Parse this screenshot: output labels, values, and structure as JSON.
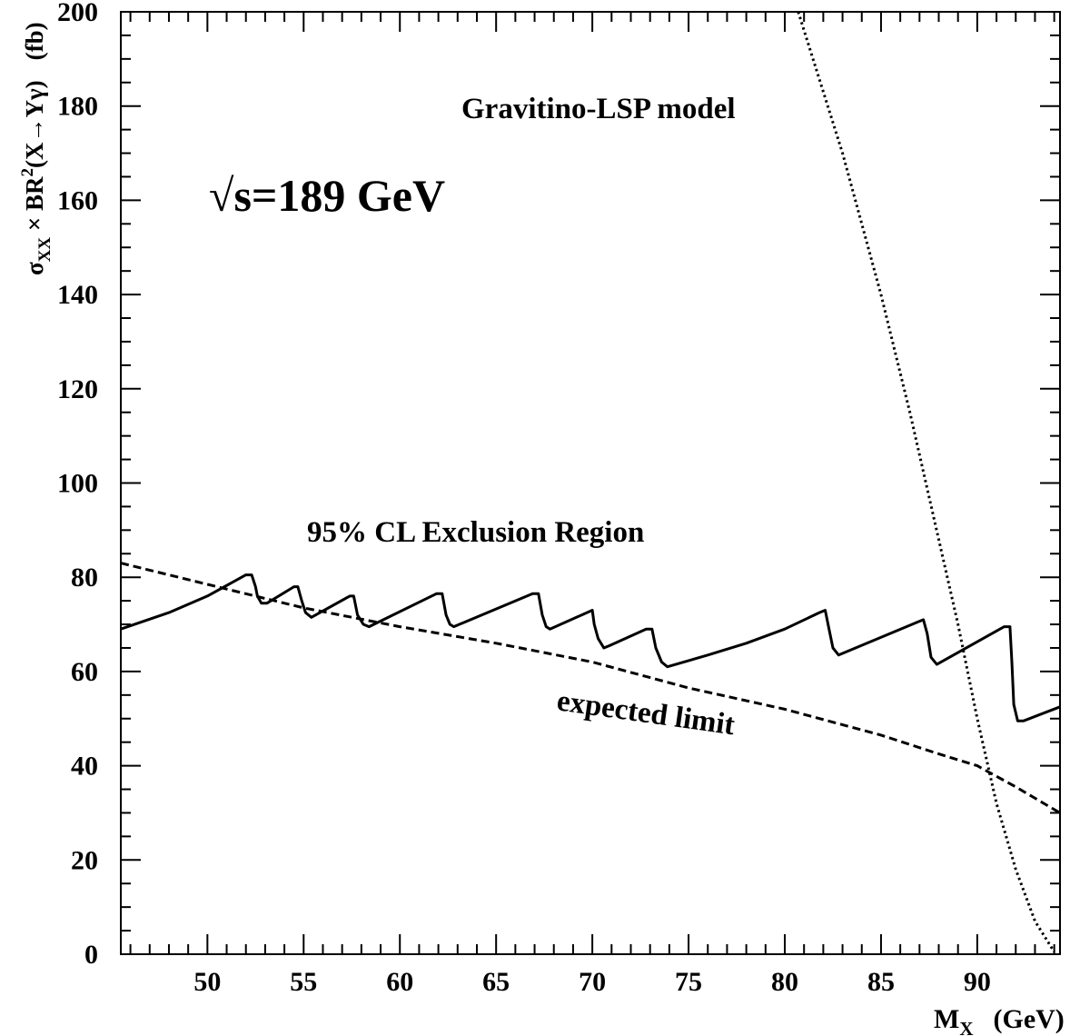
{
  "chart_data": {
    "type": "line",
    "title": "",
    "xlabel": {
      "main": "M",
      "sub": "X",
      "unit": "(GeV)"
    },
    "ylabel": {
      "sigma": "σ",
      "sigma_sub": "XX",
      "times": " × BR",
      "sup": "2",
      "process": "(X→Yγ)",
      "unit": "(fb)"
    },
    "xlim": [
      45.5,
      94.3
    ],
    "ylim": [
      0,
      200
    ],
    "x_ticks": [
      50,
      55,
      60,
      65,
      70,
      75,
      80,
      85,
      90
    ],
    "y_ticks": [
      0,
      20,
      40,
      60,
      80,
      100,
      120,
      140,
      160,
      180,
      200
    ],
    "grid": false,
    "annotations": {
      "model": "Gravitino-LSP model",
      "energy": "√s=189 GeV",
      "region": "95% CL Exclusion Region",
      "expected": "expected limit"
    },
    "series": [
      {
        "style": "solid",
        "x": [
          45.5,
          48,
          50,
          52,
          52.3,
          52.5,
          52.6,
          52.8,
          53.1,
          54.5,
          54.7,
          54.9,
          55.1,
          55.4,
          57.4,
          57.6,
          57.8,
          58.1,
          58.4,
          61.9,
          62.2,
          62.4,
          62.6,
          62.8,
          66.9,
          67.2,
          67.4,
          67.6,
          67.8,
          70,
          70.1,
          70.3,
          70.6,
          70.9,
          72.8,
          73.1,
          73.3,
          73.6,
          73.9,
          76,
          78,
          80,
          81.8,
          82.1,
          82.3,
          82.5,
          82.8,
          86.9,
          87.2,
          87.4,
          87.6,
          87.9,
          91.4,
          91.7,
          91.8,
          91.9,
          92.1,
          92.4,
          94.3
        ],
        "y": [
          69,
          72.5,
          76,
          80.5,
          80.5,
          78,
          76,
          74.5,
          74.5,
          78,
          78,
          75,
          72.5,
          71.5,
          76,
          76,
          72,
          70,
          69.5,
          76.5,
          76.5,
          72,
          70,
          69.5,
          76.5,
          76.5,
          72,
          69.5,
          69,
          73,
          70,
          67,
          65,
          65.5,
          69,
          69,
          65,
          62,
          61,
          63.5,
          66,
          69,
          72.5,
          73,
          69,
          65,
          63.5,
          70.5,
          71,
          68,
          63,
          61.5,
          69.5,
          69.5,
          62,
          53,
          49.5,
          49.5,
          52.5
        ]
      },
      {
        "style": "dashed",
        "x": [
          45.5,
          50,
          55,
          60,
          65,
          70,
          75,
          80,
          85,
          88,
          90,
          92,
          94.3
        ],
        "y": [
          83,
          78.5,
          73.5,
          69.5,
          66,
          62,
          56.5,
          52,
          46.5,
          42.5,
          40,
          35.5,
          30
        ]
      },
      {
        "style": "dotted",
        "x": [
          80.7,
          83,
          85,
          86.5,
          88,
          89,
          90,
          91,
          92,
          93,
          94
        ],
        "y": [
          200,
          170,
          140,
          115,
          88,
          70,
          50,
          32,
          18,
          7,
          0.5
        ]
      }
    ]
  }
}
